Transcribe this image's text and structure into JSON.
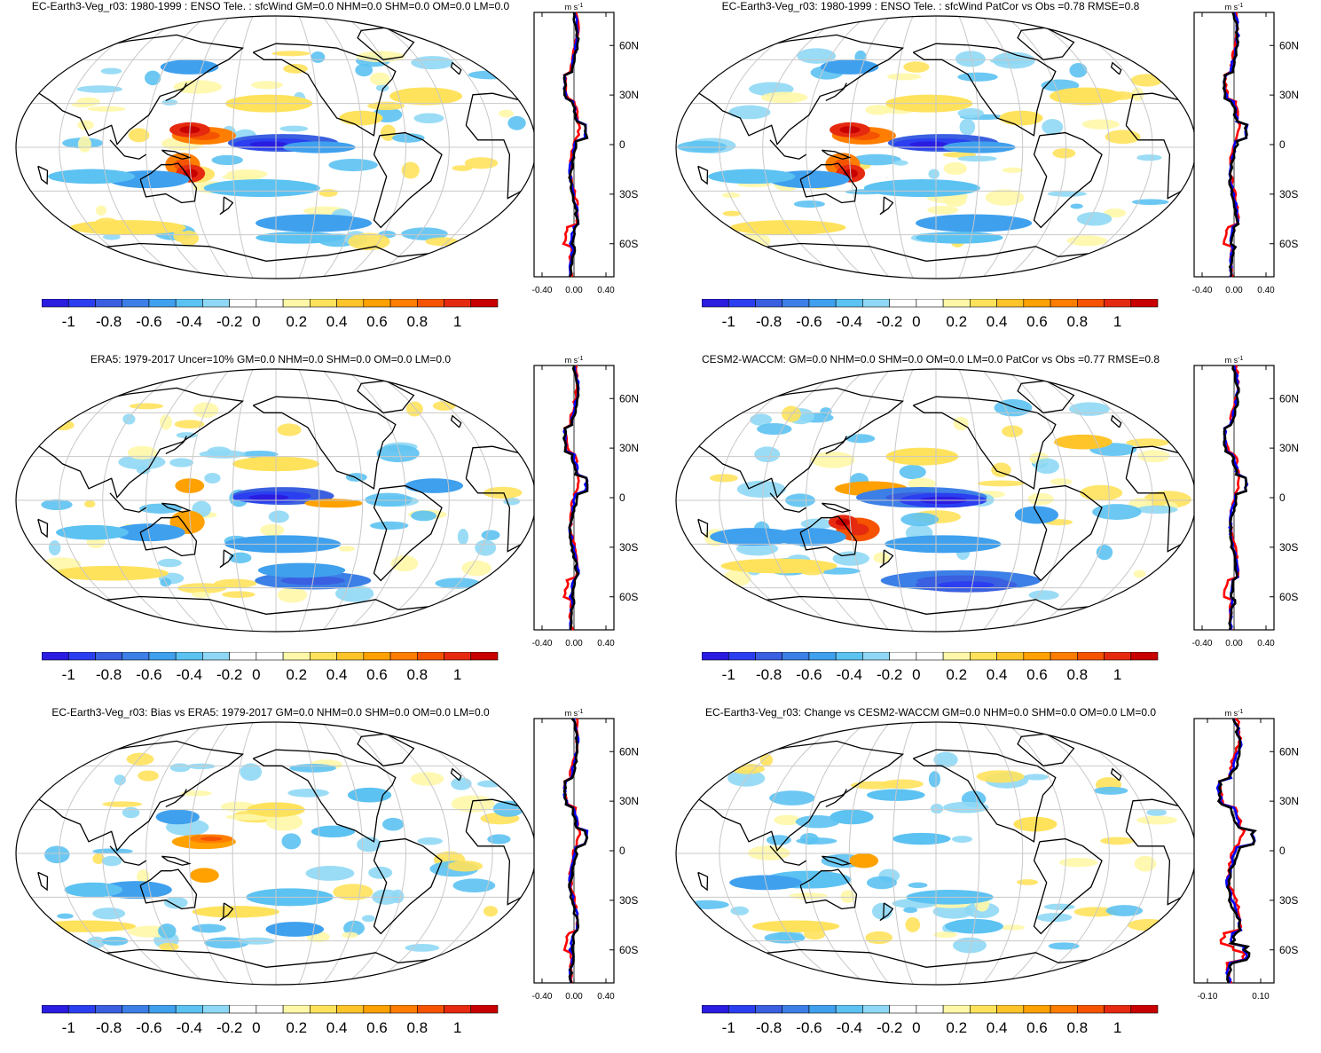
{
  "panels": [
    {
      "title": "EC-Earth3-Veg_r03: 1980-1999 : ENSO Tele. : sfcWind GM=0.0 NHM=0.0 SHM=0.0 OM=0.0 LM=0.0",
      "profile_xticks": [
        "-0.40",
        "0.00",
        "0.40"
      ],
      "profile_range": [
        -0.5,
        0.5
      ],
      "variant": "model"
    },
    {
      "title": "EC-Earth3-Veg_r03: 1980-1999 : ENSO Tele. : sfcWind PatCor vs Obs =0.78 RMSE=0.8",
      "profile_xticks": [
        "-0.40",
        "0.00",
        "0.40"
      ],
      "profile_range": [
        -0.5,
        0.5
      ],
      "variant": "model"
    },
    {
      "title": "ERA5: 1979-2017 Uncer=10% GM=0.0 NHM=0.0 SHM=0.0 OM=0.0 LM=0.0",
      "profile_xticks": [
        "-0.40",
        "0.00",
        "0.40"
      ],
      "profile_range": [
        -0.5,
        0.5
      ],
      "variant": "obs"
    },
    {
      "title": "CESM2-WACCM: GM=0.0 NHM=0.0 SHM=0.0 OM=0.0 LM=0.0 PatCor vs Obs =0.77 RMSE=0.8",
      "profile_xticks": [
        "-0.40",
        "0.00",
        "0.40"
      ],
      "profile_range": [
        -0.5,
        0.5
      ],
      "variant": "model2"
    },
    {
      "title": "EC-Earth3-Veg_r03: Bias vs ERA5: 1979-2017 GM=0.0 NHM=0.0 SHM=0.0 OM=0.0 LM=0.0",
      "profile_xticks": [
        "-0.40",
        "0.00",
        "0.40"
      ],
      "profile_range": [
        -0.5,
        0.5
      ],
      "variant": "bias"
    },
    {
      "title": "EC-Earth3-Veg_r03: Change vs CESM2-WACCM GM=0.0 NHM=0.0 SHM=0.0 OM=0.0 LM=0.0",
      "profile_xticks": [
        "-0.10",
        "0.10"
      ],
      "profile_range": [
        -0.15,
        0.15
      ],
      "variant": "change"
    }
  ],
  "profile_units": "m s",
  "profile_units_exp": "-1",
  "lat_labels": [
    "60N",
    "30N",
    "0",
    "30S",
    "60S"
  ],
  "lat_values": [
    60,
    30,
    0,
    -30,
    -60
  ],
  "colorbar": {
    "labels": [
      "-1",
      "-0.8",
      "-0.6",
      "-0.4",
      "-0.2",
      "0",
      "0.2",
      "0.4",
      "0.6",
      "0.8",
      "1"
    ],
    "colors": [
      "#2a1ce0",
      "#2b3ff0",
      "#3a5fe0",
      "#3c7fe6",
      "#3fa0ee",
      "#5cc2f2",
      "#8fd8f5",
      "#ffffff",
      "#ffffff",
      "#fff7a8",
      "#ffe25c",
      "#ffc42a",
      "#ffa100",
      "#ff7e00",
      "#f55300",
      "#e52a10",
      "#c80000"
    ]
  },
  "profile_line_colors": {
    "model": "#0000ff",
    "obs": "#ff0000",
    "mean": "#000000"
  }
}
